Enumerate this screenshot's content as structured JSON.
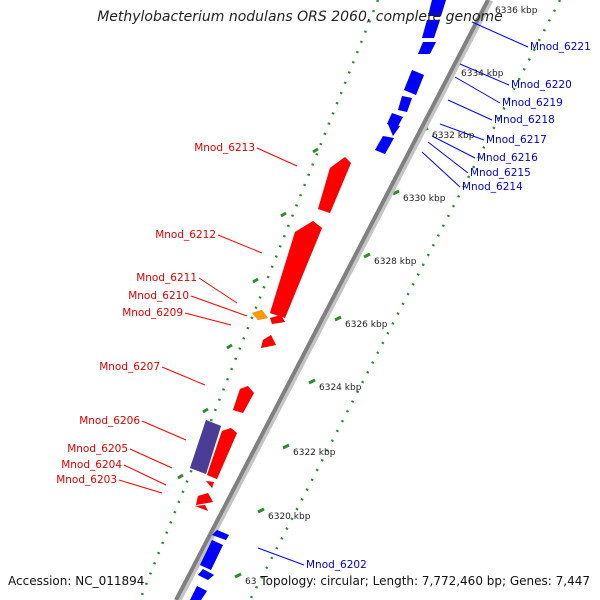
{
  "title": "Methylobacterium nodulans ORS 2060, complete genome",
  "footer": {
    "accession": "Accession: NC_011894",
    "topology": "Topology: circular; Length: 7,772,460 bp; Genes: 7,447"
  },
  "colors": {
    "forward_strand": "#ff0000",
    "reverse_strand": "#0000ff",
    "other_feature_a": "#ff9900",
    "other_feature_b": "#4b3c96",
    "backbone": "#808080",
    "tick_marks": "#2e8b2e"
  },
  "ticks": [
    "6336 kbp",
    "6334 kbp",
    "6332 kbp",
    "6330 kbp",
    "6328 kbp",
    "6326 kbp",
    "6324 kbp",
    "6322 kbp",
    "6320 kbp",
    "63"
  ],
  "red_labels": [
    "Mnod_6213",
    "Mnod_6212",
    "Mnod_6211",
    "Mnod_6210",
    "Mnod_6209",
    "Mnod_6207",
    "Mnod_6206",
    "Mnod_6205",
    "Mnod_6204",
    "Mnod_6203"
  ],
  "blue_labels": [
    "Mnod_6221",
    "Mnod_6220",
    "Mnod_6219",
    "Mnod_6218",
    "Mnod_6217",
    "Mnod_6216",
    "Mnod_6215",
    "Mnod_6214",
    "Mnod_6202"
  ]
}
